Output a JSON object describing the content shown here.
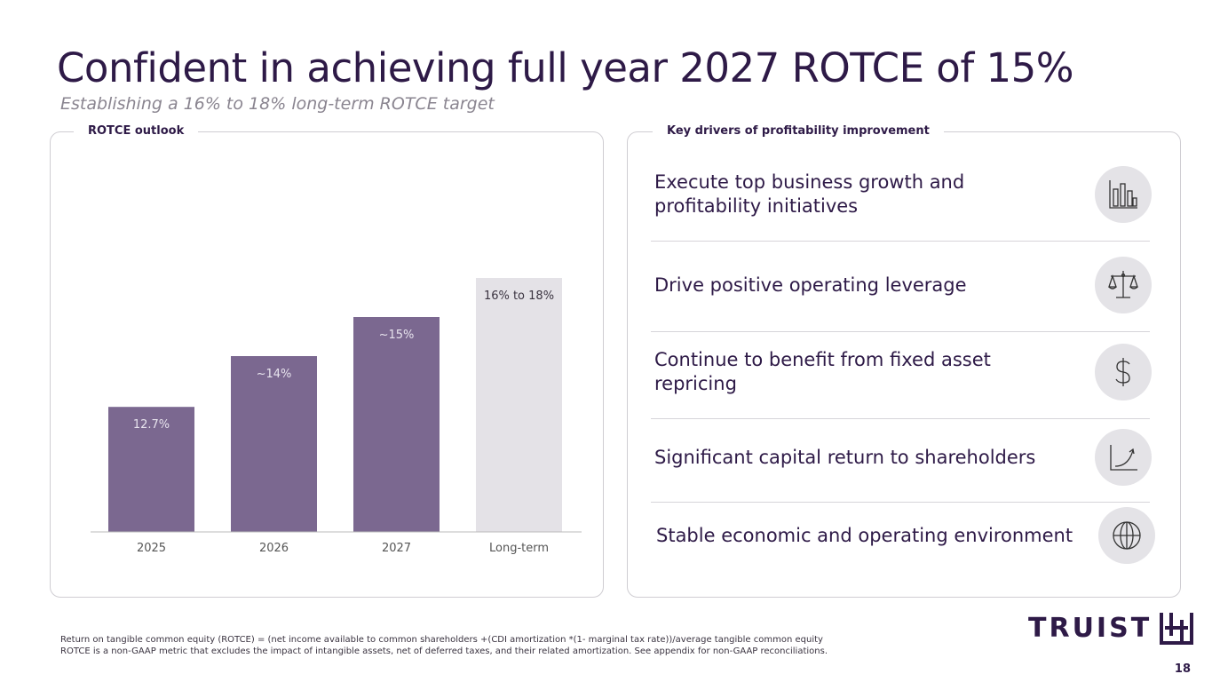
{
  "header": {
    "title": "Confident in achieving full year 2027 ROTCE of 15%",
    "subtitle": "Establishing a 16% to 18% long-term ROTCE target"
  },
  "left_panel": {
    "label": "ROTCE outlook"
  },
  "right_panel": {
    "label": "Key drivers of profitability improvement",
    "drivers": [
      {
        "text": "Execute top business growth and profitability initiatives",
        "icon": "bar-chart-icon"
      },
      {
        "text": "Drive positive operating leverage",
        "icon": "scale-icon"
      },
      {
        "text": "Continue to benefit from fixed asset repricing",
        "icon": "dollar-icon"
      },
      {
        "text": "Significant capital return to shareholders",
        "icon": "growth-curve-icon"
      },
      {
        "text": "Stable economic and operating environment",
        "icon": "globe-icon"
      }
    ]
  },
  "chart_data": {
    "type": "bar",
    "title": "ROTCE outlook",
    "categories": [
      "2025",
      "2026",
      "2027",
      "Long-term"
    ],
    "values": [
      12.7,
      14,
      15,
      16
    ],
    "ranges": [
      null,
      null,
      null,
      [
        16,
        18
      ]
    ],
    "labels": [
      "12.7%",
      "~14%",
      "~15%",
      "16% to 18%"
    ],
    "ylim": [
      9.5,
      17
    ],
    "grid": false,
    "colors": {
      "actual": "#7b6890",
      "target": "#e4e2e7"
    }
  },
  "footer": {
    "note1": "Return on tangible common equity (ROTCE) = (net income available to common shareholders +(CDI amortization *(1- marginal tax rate))/average tangible common equity",
    "note2": "ROTCE is a non-GAAP metric that excludes the impact of intangible assets, net of deferred taxes, and their related amortization.  See appendix for non-GAAP reconciliations.",
    "logo": "TRUIST",
    "page": "18"
  }
}
